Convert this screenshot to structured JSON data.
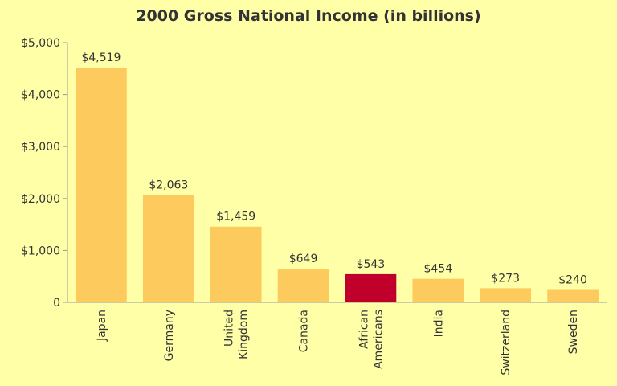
{
  "chart_data": {
    "type": "bar",
    "title": "2000 Gross National Income (in billions)",
    "xlabel": "",
    "ylabel": "",
    "categories": [
      "Japan",
      "Germany",
      "United Kingdom",
      "Canada",
      "African Americans",
      "India",
      "Switzerland",
      "Sweden"
    ],
    "category_lines": [
      [
        "Japan"
      ],
      [
        "Germany"
      ],
      [
        "United",
        "Kingdom"
      ],
      [
        "Canada"
      ],
      [
        "African",
        "Americans"
      ],
      [
        "India"
      ],
      [
        "Switzerland"
      ],
      [
        "Sweden"
      ]
    ],
    "values": [
      4519,
      2063,
      1459,
      649,
      543,
      454,
      273,
      240
    ],
    "data_labels": [
      "$4,519",
      "$2,063",
      "$1,459",
      "$649",
      "$543",
      "$454",
      "$273",
      "$240"
    ],
    "ylim": [
      0,
      5000
    ],
    "y_ticks": [
      0,
      1000,
      2000,
      3000,
      4000,
      5000
    ],
    "y_tick_labels": [
      "0",
      "$1,000",
      "$2,000",
      "$3,000",
      "$4,000",
      "$5,000"
    ],
    "highlight_index": 4,
    "grid": false,
    "legend": "none",
    "colors": {
      "background": "#ffffa8",
      "bar": "#fdca5e",
      "highlight": "#c0002a",
      "axis": "#999999",
      "text": "#333333"
    }
  }
}
